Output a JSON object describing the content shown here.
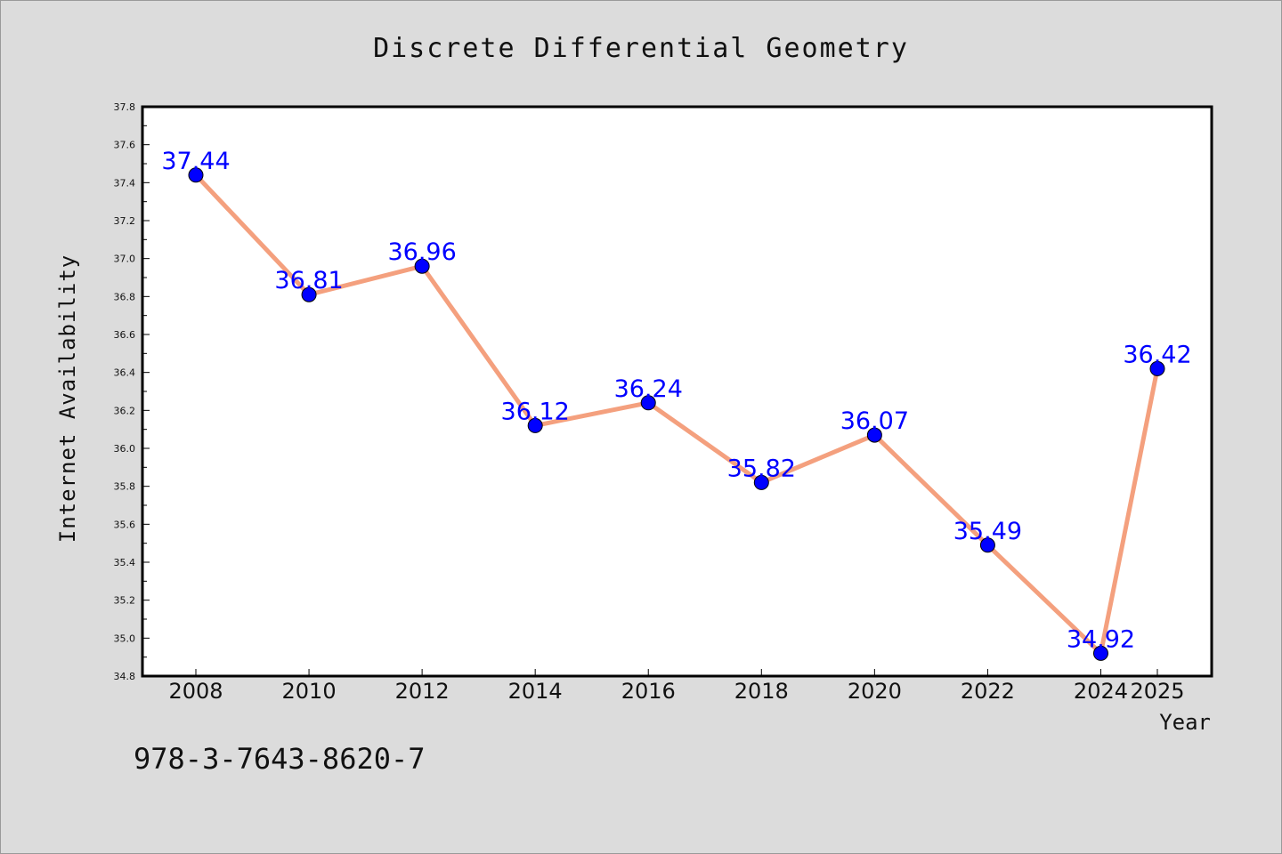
{
  "chart_data": {
    "type": "line",
    "title": "Discrete Differential Geometry",
    "xlabel": "Year",
    "ylabel": "Internet Availability",
    "x": [
      "2008",
      "2010",
      "2012",
      "2014",
      "2016",
      "2018",
      "2020",
      "2022",
      "2024",
      "2025"
    ],
    "series": [
      {
        "values": [
          37.44,
          36.81,
          36.96,
          36.12,
          36.24,
          35.82,
          36.07,
          35.49,
          34.92,
          36.42
        ]
      }
    ],
    "data_labels": [
      "37.44",
      "36.81",
      "36.96",
      "36.12",
      "36.24",
      "35.82",
      "36.07",
      "35.49",
      "34.92",
      "36.42"
    ],
    "ylim": [
      34.8,
      37.8
    ],
    "yticks": [
      "34.8",
      "35.0",
      "35.2",
      "35.4",
      "35.6",
      "35.8",
      "36.0",
      "36.2",
      "36.4",
      "36.6",
      "36.8",
      "37.0",
      "37.2",
      "37.4",
      "37.6",
      "37.8"
    ],
    "grid": false,
    "legend": "none",
    "colors": {
      "line": "#f4a07e",
      "marker": "#0000ff",
      "label": "#0000ff",
      "figure_background": "#dcdcdc",
      "plot_background": "#ffffff"
    }
  },
  "footnote": "978-3-7643-8620-7"
}
